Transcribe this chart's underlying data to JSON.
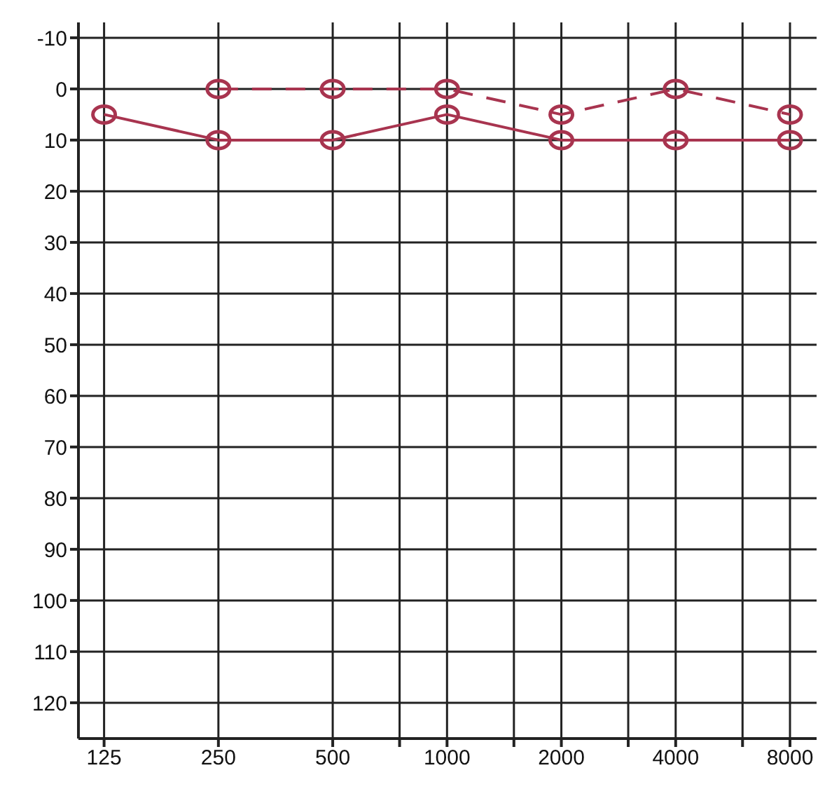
{
  "chart_data": {
    "type": "line",
    "x": [
      125,
      250,
      500,
      1000,
      2000,
      4000,
      8000
    ],
    "series": [
      {
        "color": "#a8344f",
        "values": [
          5,
          10,
          10,
          5,
          10,
          10,
          10
        ],
        "line_style": "solid"
      },
      {
        "color": "#a8344f",
        "x": [
          250,
          500,
          1000,
          2000,
          4000,
          8000
        ],
        "values": [
          0,
          0,
          0,
          5,
          0,
          5
        ],
        "line_style": "dashed"
      }
    ],
    "xlim": [
      107,
      9400
    ],
    "xticks": [
      125,
      250,
      500,
      {
        "value": 750,
        "label": null
      },
      1000,
      {
        "value": 1500,
        "label": null
      },
      2000,
      {
        "value": 3000,
        "label": null
      },
      4000,
      {
        "value": 6000,
        "label": null
      },
      8000
    ],
    "ylim": [
      127,
      -13
    ],
    "yticks": [
      -10,
      0,
      10,
      20,
      30,
      40,
      50,
      60,
      70,
      80,
      90,
      100,
      110,
      120
    ],
    "log": "x",
    "grid": true,
    "marker": "circle",
    "legend": false
  }
}
